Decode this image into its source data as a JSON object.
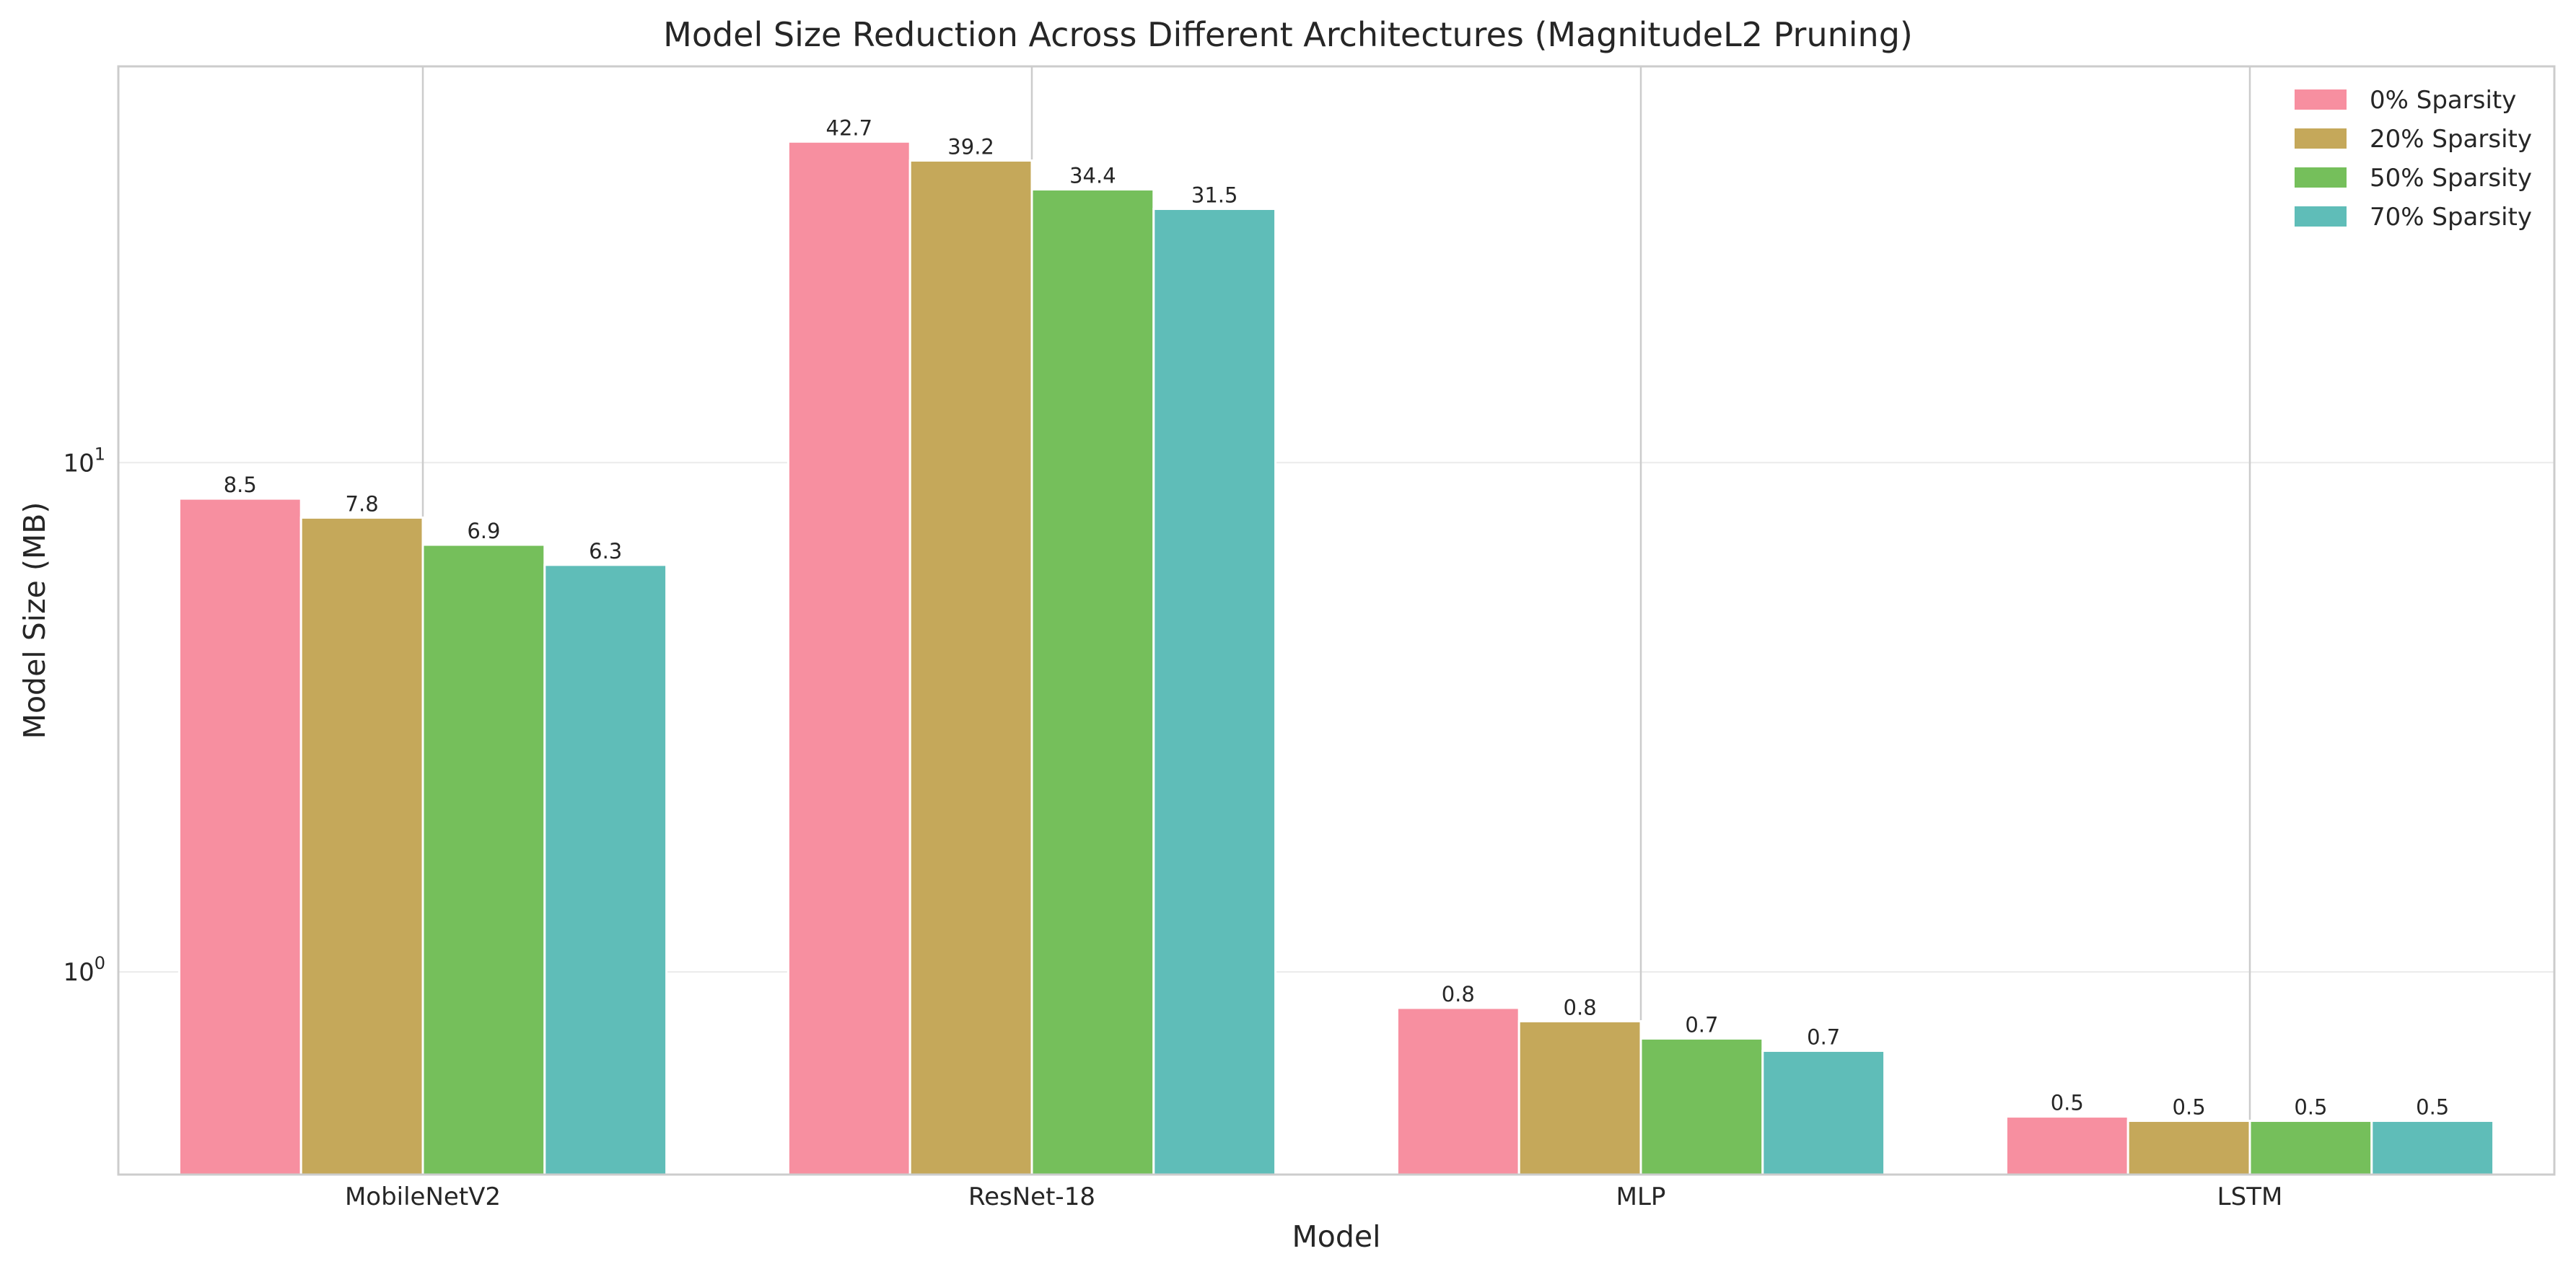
{
  "chart_data": {
    "type": "bar",
    "title": "Model Size Reduction Across Different Architectures (MagnitudeL2 Pruning)",
    "xlabel": "Model",
    "ylabel": "Model Size (MB)",
    "yscale": "log",
    "ylim": [
      0.4,
      60
    ],
    "yticks": [
      {
        "value": 1,
        "base": "10",
        "exp": "0"
      },
      {
        "value": 10,
        "base": "10",
        "exp": "1"
      }
    ],
    "grid": true,
    "legend_position": "top-right",
    "categories": [
      "MobileNetV2",
      "ResNet-18",
      "MLP",
      "LSTM"
    ],
    "series": [
      {
        "name": "0% Sparsity",
        "color": "#f78fa0",
        "values": [
          8.5,
          42.7,
          0.85,
          0.52
        ],
        "labels": [
          "8.5",
          "42.7",
          "0.8",
          "0.5"
        ]
      },
      {
        "name": "20% Sparsity",
        "color": "#c5a85a",
        "values": [
          7.8,
          39.2,
          0.8,
          0.51
        ],
        "labels": [
          "7.8",
          "39.2",
          "0.8",
          "0.5"
        ]
      },
      {
        "name": "50% Sparsity",
        "color": "#75bf5b",
        "values": [
          6.9,
          34.4,
          0.74,
          0.51
        ],
        "labels": [
          "6.9",
          "34.4",
          "0.7",
          "0.5"
        ]
      },
      {
        "name": "70% Sparsity",
        "color": "#5fbdb8",
        "values": [
          6.3,
          31.5,
          0.7,
          0.51
        ],
        "labels": [
          "6.3",
          "31.5",
          "0.7",
          "0.5"
        ]
      }
    ]
  }
}
